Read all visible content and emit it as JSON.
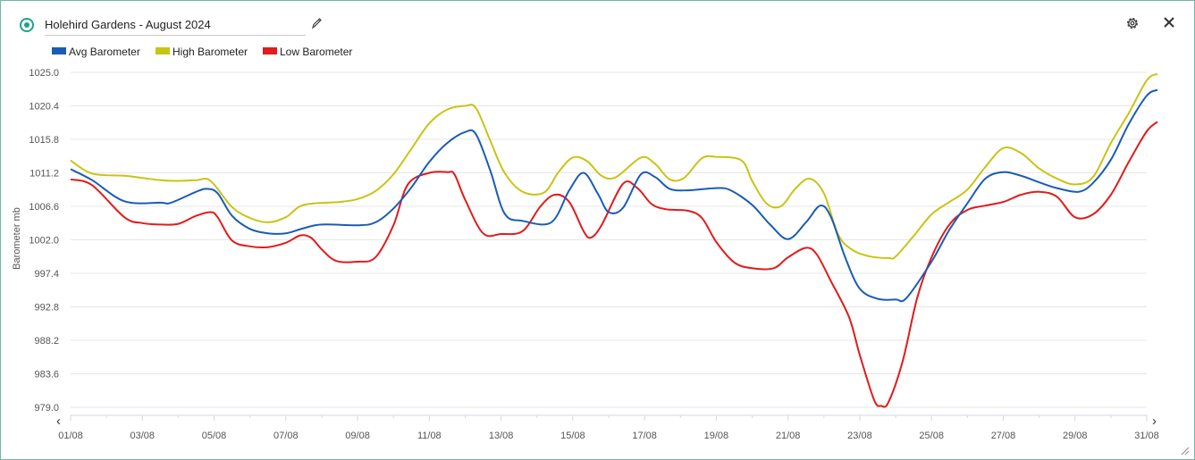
{
  "header": {
    "title": "Holehird Gardens - August 2024"
  },
  "icons": {
    "status": "status-dot-icon",
    "edit": "pencil-icon",
    "settings": "gear-icon",
    "close": "close-icon",
    "prev": "chevron-left-icon",
    "next": "chevron-right-icon"
  },
  "nav": {
    "prev_label": "‹",
    "next_label": "›"
  },
  "chart_data": {
    "type": "line",
    "title": "",
    "xlabel": "",
    "ylabel": "Barometer mb",
    "ylim": [
      979.0,
      1025.0
    ],
    "yticks": [
      "1025.0",
      "1020.4",
      "1015.8",
      "1011.2",
      "1006.6",
      "1002.0",
      "997.4",
      "992.8",
      "988.2",
      "983.6",
      "979.0"
    ],
    "xlim": [
      0,
      30
    ],
    "xticks": [
      "01/08",
      "03/08",
      "05/08",
      "07/08",
      "09/08",
      "11/08",
      "13/08",
      "15/08",
      "17/08",
      "19/08",
      "21/08",
      "23/08",
      "25/08",
      "27/08",
      "29/08",
      "31/08"
    ],
    "grid": true,
    "legend_position": "top-left",
    "series": [
      {
        "name": "Avg Barometer",
        "color": "#1a5cb5",
        "points": [
          [
            0,
            1011.7
          ],
          [
            0.6,
            1010.2
          ],
          [
            1.5,
            1007.3
          ],
          [
            2.5,
            1007.1
          ],
          [
            2.8,
            1007.1
          ],
          [
            3.5,
            1008.6
          ],
          [
            3.8,
            1009.0
          ],
          [
            4.1,
            1008.4
          ],
          [
            4.5,
            1005.3
          ],
          [
            5,
            1003.5
          ],
          [
            5.5,
            1002.9
          ],
          [
            6,
            1002.9
          ],
          [
            6.5,
            1003.6
          ],
          [
            7,
            1004.1
          ],
          [
            8,
            1004.0
          ],
          [
            8.5,
            1004.4
          ],
          [
            9,
            1006.3
          ],
          [
            9.5,
            1009.2
          ],
          [
            10,
            1012.7
          ],
          [
            10.5,
            1015.3
          ],
          [
            11,
            1016.8
          ],
          [
            11.3,
            1016.5
          ],
          [
            11.7,
            1011.5
          ],
          [
            12.1,
            1005.6
          ],
          [
            12.6,
            1004.6
          ],
          [
            13.4,
            1004.4
          ],
          [
            13.9,
            1008.8
          ],
          [
            14.3,
            1011.2
          ],
          [
            14.7,
            1008.3
          ],
          [
            15,
            1005.8
          ],
          [
            15.4,
            1006.4
          ],
          [
            15.9,
            1011.0
          ],
          [
            16.3,
            1010.6
          ],
          [
            16.7,
            1009.0
          ],
          [
            17.2,
            1008.8
          ],
          [
            18,
            1009.1
          ],
          [
            18.4,
            1008.8
          ],
          [
            19,
            1006.8
          ],
          [
            19.5,
            1004.1
          ],
          [
            20,
            1002.1
          ],
          [
            20.5,
            1004.4
          ],
          [
            20.9,
            1006.7
          ],
          [
            21.2,
            1005.1
          ],
          [
            21.6,
            999.5
          ],
          [
            22,
            995.3
          ],
          [
            22.5,
            993.9
          ],
          [
            23,
            993.8
          ],
          [
            23.3,
            994.0
          ],
          [
            24,
            999.0
          ],
          [
            24.5,
            1003.4
          ],
          [
            25,
            1007.0
          ],
          [
            25.5,
            1010.4
          ],
          [
            26,
            1011.3
          ],
          [
            26.5,
            1010.8
          ],
          [
            27,
            1009.9
          ],
          [
            27.5,
            1009.1
          ],
          [
            28.1,
            1008.6
          ],
          [
            28.5,
            1009.8
          ],
          [
            29,
            1013.0
          ],
          [
            29.5,
            1017.9
          ],
          [
            30,
            1021.8
          ],
          [
            30.3,
            1022.6
          ]
        ]
      },
      {
        "name": "High Barometer",
        "color": "#c8c414",
        "points": [
          [
            0,
            1012.9
          ],
          [
            0.6,
            1011.1
          ],
          [
            1.5,
            1010.8
          ],
          [
            2,
            1010.5
          ],
          [
            2.5,
            1010.2
          ],
          [
            3,
            1010.1
          ],
          [
            3.5,
            1010.2
          ],
          [
            3.9,
            1010.1
          ],
          [
            4.5,
            1006.5
          ],
          [
            5,
            1005.0
          ],
          [
            5.5,
            1004.4
          ],
          [
            6,
            1005.1
          ],
          [
            6.5,
            1006.8
          ],
          [
            7.5,
            1007.2
          ],
          [
            8,
            1007.6
          ],
          [
            8.5,
            1008.7
          ],
          [
            9,
            1011.0
          ],
          [
            9.5,
            1014.5
          ],
          [
            10,
            1018.0
          ],
          [
            10.5,
            1019.9
          ],
          [
            11,
            1020.4
          ],
          [
            11.3,
            1020.1
          ],
          [
            11.7,
            1015.6
          ],
          [
            12.1,
            1011.2
          ],
          [
            12.6,
            1008.6
          ],
          [
            13.2,
            1008.5
          ],
          [
            13.6,
            1011.3
          ],
          [
            14,
            1013.3
          ],
          [
            14.4,
            1012.8
          ],
          [
            14.8,
            1010.8
          ],
          [
            15.2,
            1010.6
          ],
          [
            15.9,
            1013.3
          ],
          [
            16.3,
            1012.4
          ],
          [
            16.7,
            1010.3
          ],
          [
            17.1,
            1010.5
          ],
          [
            17.6,
            1013.2
          ],
          [
            18,
            1013.4
          ],
          [
            18.7,
            1012.9
          ],
          [
            19,
            1010.1
          ],
          [
            19.4,
            1007.0
          ],
          [
            19.8,
            1006.6
          ],
          [
            20.2,
            1009.0
          ],
          [
            20.6,
            1010.4
          ],
          [
            21,
            1008.4
          ],
          [
            21.4,
            1002.7
          ],
          [
            21.8,
            1000.6
          ],
          [
            22.3,
            999.7
          ],
          [
            22.8,
            999.5
          ],
          [
            23,
            999.7
          ],
          [
            23.5,
            1002.5
          ],
          [
            24,
            1005.5
          ],
          [
            24.5,
            1007.2
          ],
          [
            25,
            1008.9
          ],
          [
            25.5,
            1012.0
          ],
          [
            26,
            1014.6
          ],
          [
            26.5,
            1013.9
          ],
          [
            27,
            1011.8
          ],
          [
            27.5,
            1010.4
          ],
          [
            28,
            1009.6
          ],
          [
            28.5,
            1010.6
          ],
          [
            29,
            1015.3
          ],
          [
            29.5,
            1019.4
          ],
          [
            30,
            1023.9
          ],
          [
            30.3,
            1024.8
          ]
        ]
      },
      {
        "name": "Low Barometer",
        "color": "#e21b1b",
        "points": [
          [
            0,
            1010.3
          ],
          [
            0.6,
            1009.5
          ],
          [
            1.5,
            1005.1
          ],
          [
            2,
            1004.3
          ],
          [
            2.5,
            1004.1
          ],
          [
            3,
            1004.2
          ],
          [
            3.5,
            1005.3
          ],
          [
            3.9,
            1005.8
          ],
          [
            4.1,
            1005.1
          ],
          [
            4.5,
            1001.9
          ],
          [
            5,
            1001.1
          ],
          [
            5.5,
            1001.0
          ],
          [
            6,
            1001.6
          ],
          [
            6.4,
            1002.6
          ],
          [
            6.7,
            1002.3
          ],
          [
            7,
            1000.7
          ],
          [
            7.4,
            999.1
          ],
          [
            8,
            999.0
          ],
          [
            8.5,
            999.6
          ],
          [
            9,
            1004.0
          ],
          [
            9.4,
            1009.6
          ],
          [
            10,
            1011.2
          ],
          [
            10.5,
            1011.3
          ],
          [
            10.7,
            1011.0
          ],
          [
            11,
            1007.5
          ],
          [
            11.5,
            1002.9
          ],
          [
            12,
            1002.8
          ],
          [
            12.6,
            1003.2
          ],
          [
            13.1,
            1006.6
          ],
          [
            13.5,
            1008.2
          ],
          [
            13.9,
            1007.2
          ],
          [
            14.3,
            1003.2
          ],
          [
            14.5,
            1002.3
          ],
          [
            14.8,
            1004.0
          ],
          [
            15.4,
            1009.7
          ],
          [
            15.8,
            1009.1
          ],
          [
            16.2,
            1006.9
          ],
          [
            16.6,
            1006.2
          ],
          [
            17.2,
            1006.0
          ],
          [
            17.6,
            1005.0
          ],
          [
            18,
            1001.7
          ],
          [
            18.5,
            998.9
          ],
          [
            19,
            998.1
          ],
          [
            19.6,
            998.1
          ],
          [
            20,
            999.6
          ],
          [
            20.5,
            1000.9
          ],
          [
            20.8,
            1000.0
          ],
          [
            21.2,
            996.3
          ],
          [
            21.7,
            991.4
          ],
          [
            22,
            986.2
          ],
          [
            22.4,
            980.0
          ],
          [
            22.6,
            979.2
          ],
          [
            22.8,
            979.7
          ],
          [
            23.2,
            985.4
          ],
          [
            23.6,
            994.0
          ],
          [
            24,
            999.6
          ],
          [
            24.5,
            1004.1
          ],
          [
            25,
            1006.1
          ],
          [
            25.5,
            1006.7
          ],
          [
            26,
            1007.2
          ],
          [
            26.5,
            1008.2
          ],
          [
            27,
            1008.6
          ],
          [
            27.5,
            1007.9
          ],
          [
            28,
            1005.1
          ],
          [
            28.5,
            1005.5
          ],
          [
            29,
            1008.2
          ],
          [
            29.5,
            1012.7
          ],
          [
            30,
            1016.9
          ],
          [
            30.3,
            1018.2
          ]
        ]
      }
    ]
  }
}
